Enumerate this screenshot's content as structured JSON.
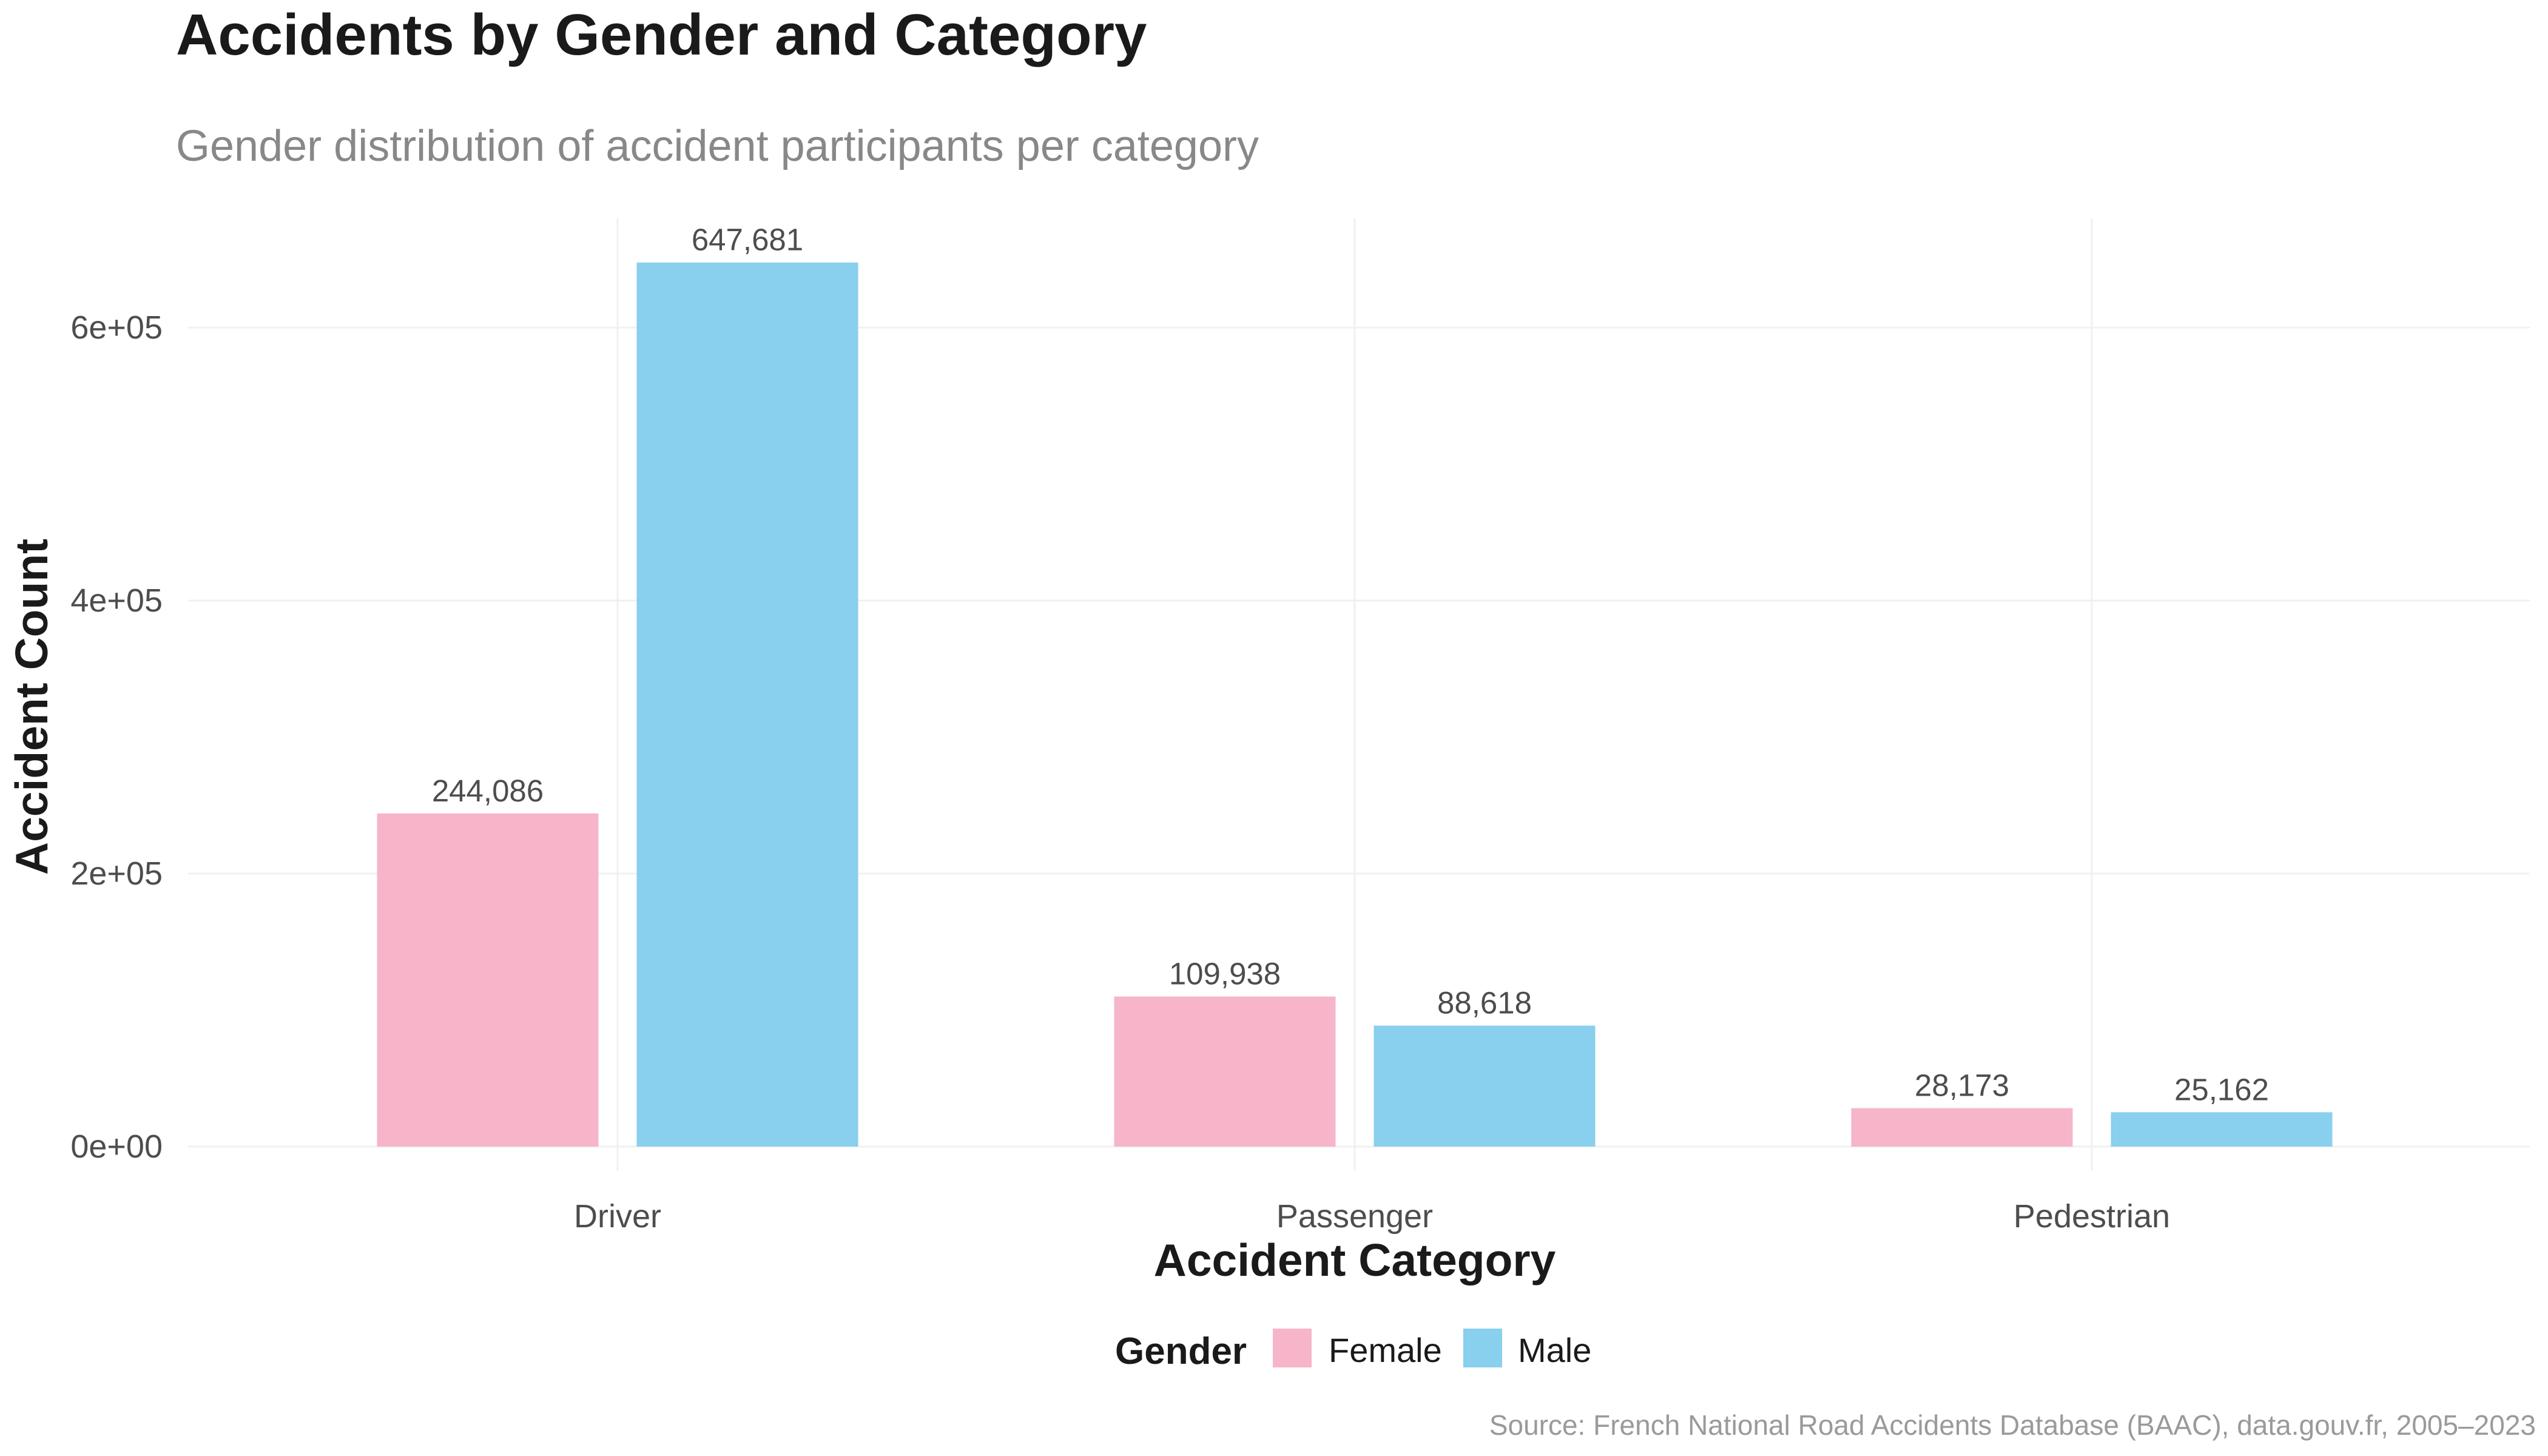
{
  "chart_data": {
    "type": "bar",
    "title": "Accidents by Gender and Category",
    "subtitle": "Gender distribution of accident participants per category",
    "xlabel": "Accident Category",
    "ylabel": "Accident Count",
    "caption": "Source: French National Road Accidents Database (BAAC), data.gouv.fr, 2005–2023",
    "categories": [
      "Driver",
      "Passenger",
      "Pedestrian"
    ],
    "series": [
      {
        "name": "Female",
        "color": "#F6B5C8",
        "values": [
          244086,
          109938,
          28173
        ],
        "labels": [
          "244,086",
          "109,938",
          "28,173"
        ]
      },
      {
        "name": "Male",
        "color": "#89CFEE",
        "values": [
          647681,
          88618,
          25162
        ],
        "labels": [
          "647,681",
          "88,618",
          "25,162"
        ]
      }
    ],
    "ylim": [
      0,
      680000
    ],
    "yticks": [
      0,
      200000,
      400000,
      600000
    ],
    "ytick_labels": [
      "0e+00",
      "2e+05",
      "4e+05",
      "6e+05"
    ],
    "legend": {
      "title": "Gender",
      "position": "bottom"
    },
    "grid": true
  }
}
